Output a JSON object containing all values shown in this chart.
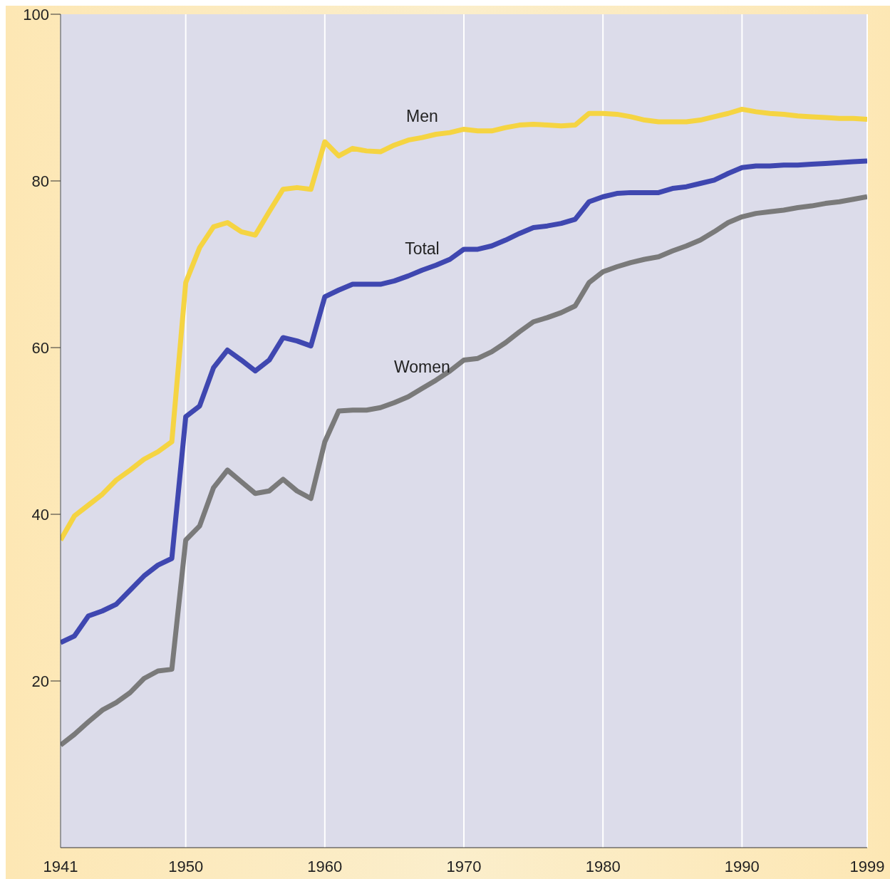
{
  "chart_data": {
    "type": "line",
    "x": [
      1941,
      1942,
      1943,
      1944,
      1945,
      1946,
      1947,
      1948,
      1949,
      1950,
      1951,
      1952,
      1953,
      1954,
      1955,
      1956,
      1957,
      1958,
      1959,
      1960,
      1961,
      1962,
      1963,
      1964,
      1965,
      1966,
      1967,
      1968,
      1969,
      1970,
      1971,
      1972,
      1973,
      1974,
      1975,
      1976,
      1977,
      1978,
      1979,
      1980,
      1981,
      1982,
      1983,
      1984,
      1985,
      1986,
      1987,
      1988,
      1989,
      1990,
      1991,
      1992,
      1993,
      1994,
      1995,
      1996,
      1997,
      1998,
      1999
    ],
    "series": [
      {
        "name": "Men",
        "color": "#f5d442",
        "values": [
          36.9,
          39.8,
          41.1,
          42.4,
          44.1,
          45.3,
          46.6,
          47.5,
          48.7,
          67.8,
          72,
          74.5,
          75,
          73.9,
          73.5,
          76.3,
          79,
          79.2,
          79,
          84.7,
          83,
          83.9,
          83.6,
          83.5,
          84.3,
          84.9,
          85.2,
          85.6,
          85.8,
          86.2,
          86,
          86,
          86.4,
          86.7,
          86.8,
          86.7,
          86.6,
          86.7,
          88.1,
          88.1,
          88,
          87.7,
          87.3,
          87.1,
          87.1,
          87.1,
          87.3,
          87.7,
          88.1,
          88.6,
          88.3,
          88.1,
          88,
          87.8,
          87.7,
          87.6,
          87.5,
          87.5,
          87.4
        ]
      },
      {
        "name": "Total",
        "color": "#3f47b0",
        "values": [
          24.6,
          25.4,
          27.8,
          28.4,
          29.2,
          30.9,
          32.6,
          33.9,
          34.7,
          51.7,
          53,
          57.6,
          59.7,
          58.5,
          57.2,
          58.5,
          61.2,
          60.8,
          60.2,
          66.1,
          66.9,
          67.6,
          67.6,
          67.6,
          68,
          68.6,
          69.3,
          69.9,
          70.6,
          71.8,
          71.8,
          72.2,
          72.9,
          73.7,
          74.4,
          74.6,
          74.9,
          75.4,
          77.5,
          78.1,
          78.5,
          78.6,
          78.6,
          78.6,
          79.1,
          79.3,
          79.7,
          80.1,
          80.9,
          81.6,
          81.8,
          81.8,
          81.9,
          81.9,
          82,
          82.1,
          82.2,
          82.3,
          82.4
        ]
      },
      {
        "name": "Women",
        "color": "#7a7a7a",
        "values": [
          12.3,
          13.6,
          15.1,
          16.5,
          17.4,
          18.6,
          20.3,
          21.2,
          21.4,
          36.9,
          38.6,
          43.2,
          45.3,
          43.9,
          42.5,
          42.8,
          44.2,
          42.8,
          41.9,
          48.7,
          52.4,
          52.5,
          52.5,
          52.8,
          53.4,
          54.1,
          55.1,
          56.1,
          57.2,
          58.5,
          58.7,
          59.5,
          60.6,
          61.9,
          63.1,
          63.6,
          64.2,
          65,
          67.8,
          69.1,
          69.7,
          70.2,
          70.6,
          70.9,
          71.6,
          72.2,
          72.9,
          73.9,
          75,
          75.7,
          76.1,
          76.3,
          76.5,
          76.8,
          77,
          77.3,
          77.5,
          77.8,
          78.1
        ]
      }
    ],
    "xlim": [
      1941,
      1999
    ],
    "xticks": [
      1941,
      1950,
      1960,
      1970,
      1980,
      1990,
      1999
    ],
    "ylim": [
      0,
      100
    ],
    "yticks": [
      20,
      40,
      60,
      80,
      100
    ],
    "grid": "x",
    "legend": false,
    "marker": "none",
    "line_style": "solid"
  }
}
